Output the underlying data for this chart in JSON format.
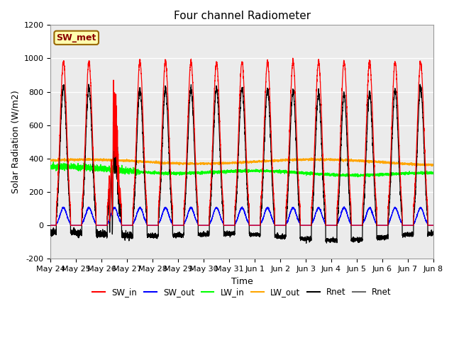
{
  "title": "Four channel Radiometer",
  "xlabel": "Time",
  "ylabel": "Solar Radiation (W/m2)",
  "ylim": [
    -200,
    1200
  ],
  "yticks": [
    -200,
    0,
    200,
    400,
    600,
    800,
    1000,
    1200
  ],
  "x_labels": [
    "May 24",
    "May 25",
    "May 26",
    "May 27",
    "May 28",
    "May 29",
    "May 30",
    "May 31",
    "Jun 1",
    "Jun 2",
    "Jun 3",
    "Jun 4",
    "Jun 5",
    "Jun 6",
    "Jun 7",
    "Jun 8"
  ],
  "annotation_text": "SW_met",
  "background_color": "#e8e8e8",
  "legend_entries": [
    "SW_in",
    "SW_out",
    "LW_in",
    "LW_out",
    "Rnet",
    "Rnet"
  ],
  "num_days": 15,
  "day_points": 288
}
